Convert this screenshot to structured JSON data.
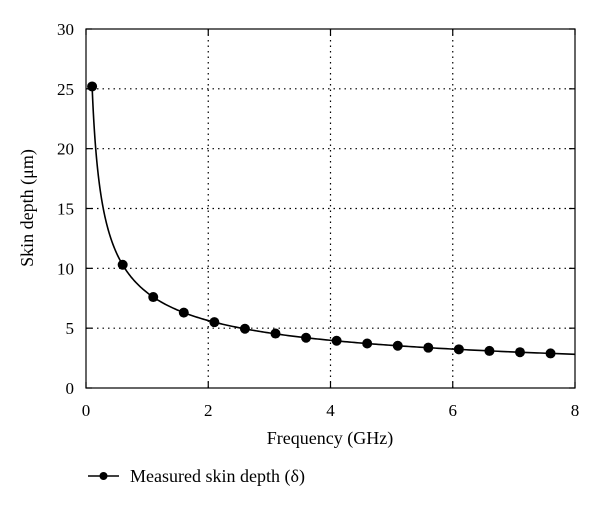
{
  "chart_data": {
    "type": "line",
    "xlabel": "Frequency (GHz)",
    "ylabel": "Skin depth (μm)",
    "xlim": [
      0,
      8
    ],
    "ylim": [
      0,
      30
    ],
    "xticks": [
      0,
      2,
      4,
      6,
      8
    ],
    "yticks": [
      0,
      5,
      10,
      15,
      20,
      25,
      30
    ],
    "xtick_labels": [
      "0",
      "2",
      "4",
      "6",
      "8"
    ],
    "ytick_labels": [
      "0",
      "5",
      "10",
      "15",
      "20",
      "25",
      "30"
    ],
    "grid": "dotted, at major ticks",
    "legend_position": "bottom-left, below plot",
    "series": [
      {
        "name": "Measured skin depth (δ)",
        "style": "line with filled circle markers",
        "color": "#000000",
        "x": [
          0.1,
          0.6,
          1.1,
          1.6,
          2.1,
          2.6,
          3.1,
          3.6,
          4.1,
          4.6,
          5.1,
          5.6,
          6.1,
          6.6,
          7.1,
          7.6
        ],
        "y": [
          25.2,
          10.3,
          7.6,
          6.3,
          5.5,
          4.95,
          4.55,
          4.2,
          3.95,
          3.72,
          3.53,
          3.37,
          3.23,
          3.1,
          2.99,
          2.89
        ]
      }
    ],
    "curve": {
      "x_range": [
        0.1,
        8.0
      ],
      "k": 7.97
    }
  }
}
